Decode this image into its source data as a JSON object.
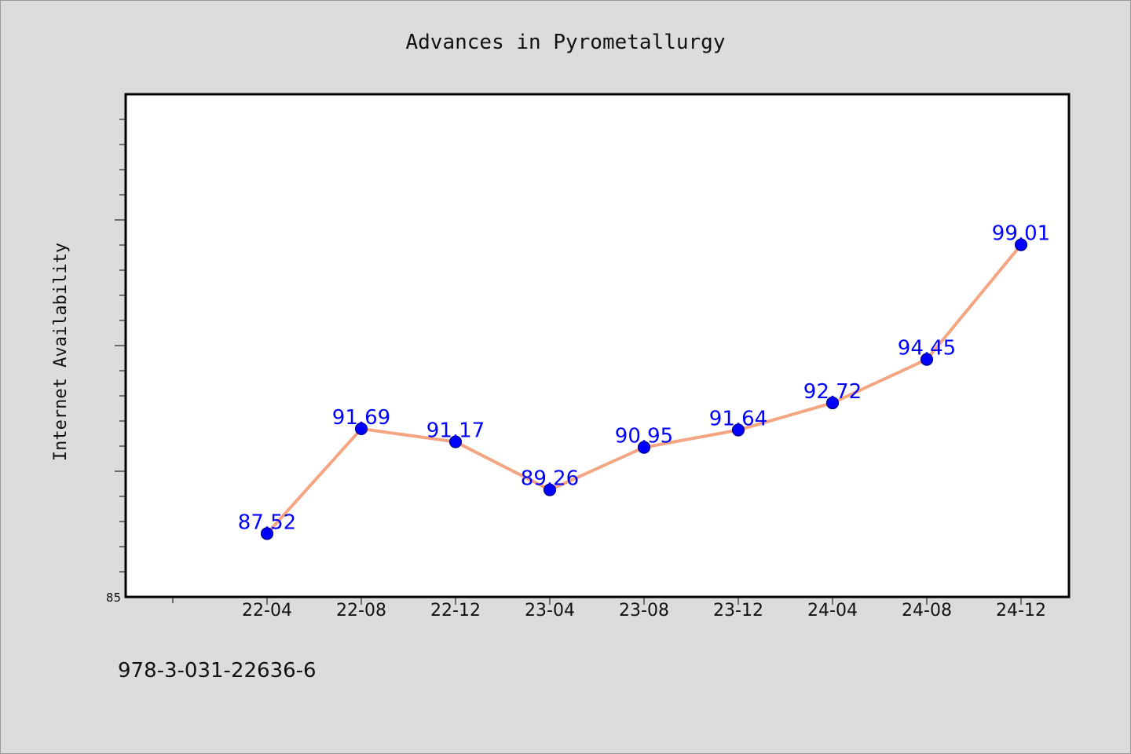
{
  "chart_data": {
    "type": "line",
    "title": "Advances in Pyrometallurgy",
    "xlabel": "",
    "ylabel": "Internet Availability",
    "categories": [
      "22-04",
      "22-08",
      "22-12",
      "23-04",
      "23-08",
      "23-12",
      "24-04",
      "24-08",
      "24-12"
    ],
    "series": [
      {
        "values": [
          87.52,
          91.69,
          91.17,
          89.26,
          90.95,
          91.64,
          92.72,
          94.45,
          99.01
        ],
        "labels": [
          "87.52",
          "91.69",
          "91.17",
          "89.26",
          "90.95",
          "91.64",
          "92.72",
          "94.45",
          "99.01"
        ]
      }
    ],
    "ylim": [
      85,
      105
    ],
    "ytick_labels": [
      "85"
    ],
    "grid": false,
    "legend": "none"
  },
  "footer": {
    "isbn": "978-3-031-22636-6"
  },
  "colors": {
    "background": "#dcdcdc",
    "plot_background": "#ffffff",
    "line": "#f4a582",
    "marker": "#0000ff",
    "label": "#0000ff"
  }
}
